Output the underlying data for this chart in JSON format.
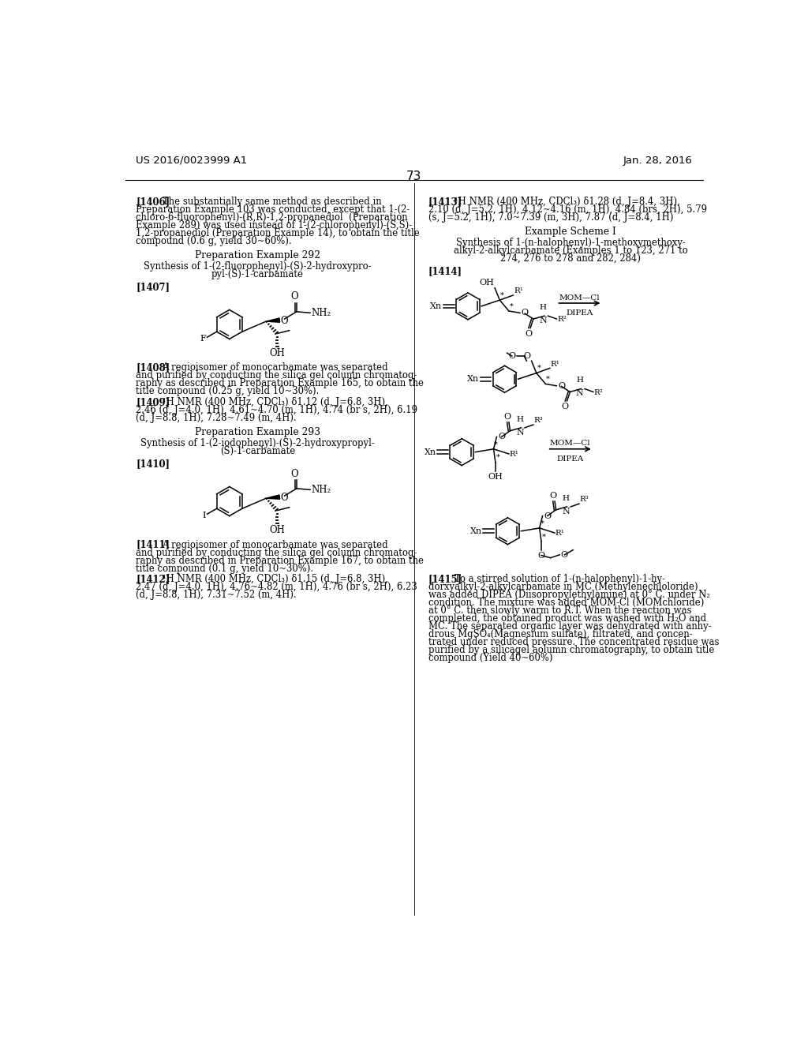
{
  "page_number": "73",
  "header_left": "US 2016/0023999 A1",
  "header_right": "Jan. 28, 2016",
  "bg": "#ffffff"
}
